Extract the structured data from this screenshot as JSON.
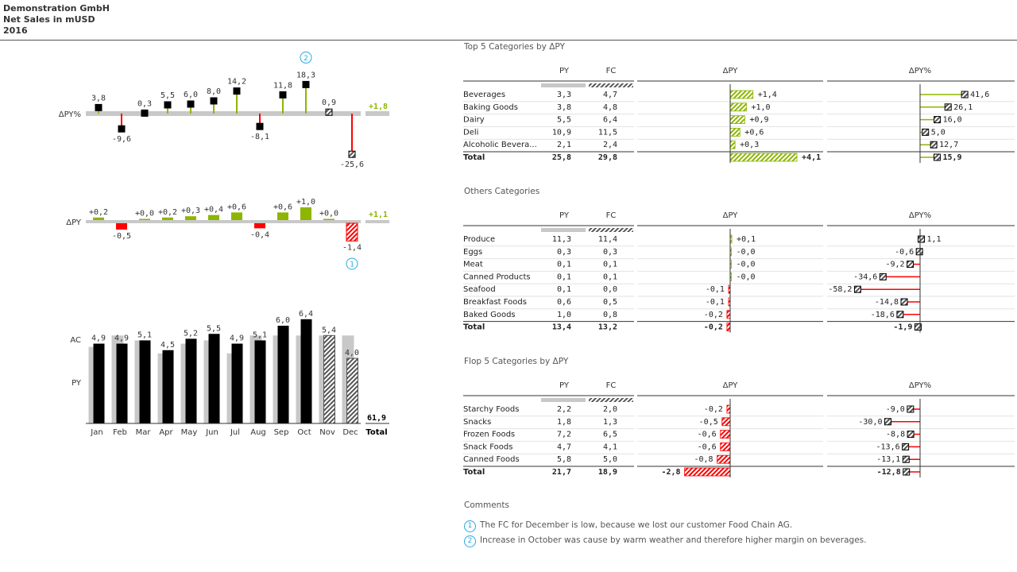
{
  "header": {
    "company": "Demonstration GmbH",
    "measure": "Net Sales in mUSD",
    "year": "2016"
  },
  "colors": {
    "positive": "#8db600",
    "negative": "#ff0000",
    "ac": "#000000",
    "py": "#c8c8c8",
    "marker": "#29a8e0"
  },
  "chart_data": [
    {
      "type": "bar",
      "id": "dpy_percent",
      "row_label": "ΔPY%",
      "categories": [
        "Jan",
        "Feb",
        "Mar",
        "Apr",
        "May",
        "Jun",
        "Jul",
        "Aug",
        "Sep",
        "Oct",
        "Nov",
        "Dec"
      ],
      "values": [
        3.8,
        -9.6,
        0.3,
        5.5,
        6.0,
        8.0,
        14.2,
        -8.1,
        11.8,
        18.3,
        0.9,
        -25.6
      ],
      "labels": [
        "3,8",
        "-9,6",
        "0,3",
        "5,5",
        "6,0",
        "8,0",
        "14,2",
        "-8,1",
        "11,8",
        "18,3",
        "0,9",
        "-25,6"
      ],
      "forecast_from": 10,
      "total": "+1,8",
      "marker": {
        "index": 9,
        "text": "2"
      }
    },
    {
      "type": "bar",
      "id": "dpy_abs",
      "row_label": "ΔPY",
      "categories": [
        "Jan",
        "Feb",
        "Mar",
        "Apr",
        "May",
        "Jun",
        "Jul",
        "Aug",
        "Sep",
        "Oct",
        "Nov",
        "Dec"
      ],
      "values": [
        0.2,
        -0.5,
        0.0,
        0.2,
        0.3,
        0.4,
        0.6,
        -0.4,
        0.6,
        1.0,
        0.0,
        -1.4
      ],
      "labels": [
        "+0,2",
        "-0,5",
        "+0,0",
        "+0,2",
        "+0,3",
        "+0,4",
        "+0,6",
        "-0,4",
        "+0,6",
        "+1,0",
        "+0,0",
        "-1,4"
      ],
      "forecast_from": 10,
      "total": "+1,1",
      "marker": {
        "index": 11,
        "text": "1"
      }
    },
    {
      "type": "bar",
      "id": "ac_py",
      "row_labels": [
        "AC",
        "PY"
      ],
      "categories": [
        "Jan",
        "Feb",
        "Mar",
        "Apr",
        "May",
        "Jun",
        "Jul",
        "Aug",
        "Sep",
        "Oct",
        "Nov",
        "Dec"
      ],
      "ac": [
        4.9,
        4.9,
        5.1,
        4.5,
        5.2,
        5.5,
        4.9,
        5.1,
        6.0,
        6.4,
        5.4,
        4.0
      ],
      "py": [
        4.7,
        5.4,
        5.1,
        4.3,
        4.9,
        5.1,
        4.3,
        5.4,
        5.4,
        5.4,
        5.4,
        5.4
      ],
      "labels": [
        "4,9",
        "4,9",
        "5,1",
        "4,5",
        "5,2",
        "5,5",
        "4,9",
        "5,1",
        "6,0",
        "6,4",
        "5,4",
        "4,0"
      ],
      "forecast_from": 10,
      "total": "61,9",
      "total_label": "Total"
    },
    {
      "type": "table",
      "id": "top5",
      "title": "Top 5 Categories by ΔPY",
      "columns": [
        "PY",
        "FC",
        "ΔPY",
        "ΔPY%"
      ],
      "rows": [
        {
          "name": "Beverages",
          "py": "3,3",
          "fc": "4,7",
          "dpy": 1.4,
          "dpy_label": "+1,4",
          "dpyp": 41.6,
          "dpyp_label": "41,6"
        },
        {
          "name": "Baking Goods",
          "py": "3,8",
          "fc": "4,8",
          "dpy": 1.0,
          "dpy_label": "+1,0",
          "dpyp": 26.1,
          "dpyp_label": "26,1"
        },
        {
          "name": "Dairy",
          "py": "5,5",
          "fc": "6,4",
          "dpy": 0.9,
          "dpy_label": "+0,9",
          "dpyp": 16.0,
          "dpyp_label": "16,0"
        },
        {
          "name": "Deli",
          "py": "10,9",
          "fc": "11,5",
          "dpy": 0.6,
          "dpy_label": "+0,6",
          "dpyp": 5.0,
          "dpyp_label": "5,0"
        },
        {
          "name": "Alcoholic Bevera...",
          "py": "2,1",
          "fc": "2,4",
          "dpy": 0.3,
          "dpy_label": "+0,3",
          "dpyp": 12.7,
          "dpyp_label": "12,7"
        }
      ],
      "total": {
        "name": "Total",
        "py": "25,8",
        "fc": "29,8",
        "dpy": 4.1,
        "dpy_label": "+4,1",
        "dpyp": 15.9,
        "dpyp_label": "15,9"
      }
    },
    {
      "type": "table",
      "id": "others",
      "title": "Others Categories",
      "columns": [
        "PY",
        "FC",
        "ΔPY",
        "ΔPY%"
      ],
      "rows": [
        {
          "name": "Produce",
          "py": "11,3",
          "fc": "11,4",
          "dpy": 0.1,
          "dpy_label": "+0,1",
          "dpyp": 1.1,
          "dpyp_label": "1,1"
        },
        {
          "name": "Eggs",
          "py": "0,3",
          "fc": "0,3",
          "dpy": -0.0,
          "dpy_label": "-0,0",
          "dpyp": -0.6,
          "dpyp_label": "-0,6"
        },
        {
          "name": "Meat",
          "py": "0,1",
          "fc": "0,1",
          "dpy": -0.0,
          "dpy_label": "-0,0",
          "dpyp": -9.2,
          "dpyp_label": "-9,2"
        },
        {
          "name": "Canned Products",
          "py": "0,1",
          "fc": "0,1",
          "dpy": -0.0,
          "dpy_label": "-0,0",
          "dpyp": -34.6,
          "dpyp_label": "-34,6"
        },
        {
          "name": "Seafood",
          "py": "0,1",
          "fc": "0,0",
          "dpy": -0.1,
          "dpy_label": "-0,1",
          "dpyp": -58.2,
          "dpyp_label": "-58,2"
        },
        {
          "name": "Breakfast Foods",
          "py": "0,6",
          "fc": "0,5",
          "dpy": -0.1,
          "dpy_label": "-0,1",
          "dpyp": -14.8,
          "dpyp_label": "-14,8"
        },
        {
          "name": "Baked Goods",
          "py": "1,0",
          "fc": "0,8",
          "dpy": -0.2,
          "dpy_label": "-0,2",
          "dpyp": -18.6,
          "dpyp_label": "-18,6"
        }
      ],
      "total": {
        "name": "Total",
        "py": "13,4",
        "fc": "13,2",
        "dpy": -0.2,
        "dpy_label": "-0,2",
        "dpyp": -1.9,
        "dpyp_label": "-1,9"
      }
    },
    {
      "type": "table",
      "id": "flop5",
      "title": "Flop 5 Categories by ΔPY",
      "columns": [
        "PY",
        "FC",
        "ΔPY",
        "ΔPY%"
      ],
      "rows": [
        {
          "name": "Starchy Foods",
          "py": "2,2",
          "fc": "2,0",
          "dpy": -0.2,
          "dpy_label": "-0,2",
          "dpyp": -9.0,
          "dpyp_label": "-9,0"
        },
        {
          "name": "Snacks",
          "py": "1,8",
          "fc": "1,3",
          "dpy": -0.5,
          "dpy_label": "-0,5",
          "dpyp": -30.0,
          "dpyp_label": "-30,0"
        },
        {
          "name": "Frozen Foods",
          "py": "7,2",
          "fc": "6,5",
          "dpy": -0.6,
          "dpy_label": "-0,6",
          "dpyp": -8.8,
          "dpyp_label": "-8,8"
        },
        {
          "name": "Snack Foods",
          "py": "4,7",
          "fc": "4,1",
          "dpy": -0.6,
          "dpy_label": "-0,6",
          "dpyp": -13.6,
          "dpyp_label": "-13,6"
        },
        {
          "name": "Canned Foods",
          "py": "5,8",
          "fc": "5,0",
          "dpy": -0.8,
          "dpy_label": "-0,8",
          "dpyp": -13.1,
          "dpyp_label": "-13,1"
        }
      ],
      "total": {
        "name": "Total",
        "py": "21,7",
        "fc": "18,9",
        "dpy": -2.8,
        "dpy_label": "-2,8",
        "dpyp": -12.8,
        "dpyp_label": "-12,8"
      }
    }
  ],
  "comments": {
    "title": "Comments",
    "items": [
      {
        "marker": "1",
        "text": "The FC for December is low, because we lost our customer Food Chain AG."
      },
      {
        "marker": "2",
        "text": "Increase in October was cause by warm weather and therefore higher margin on beverages."
      }
    ]
  }
}
